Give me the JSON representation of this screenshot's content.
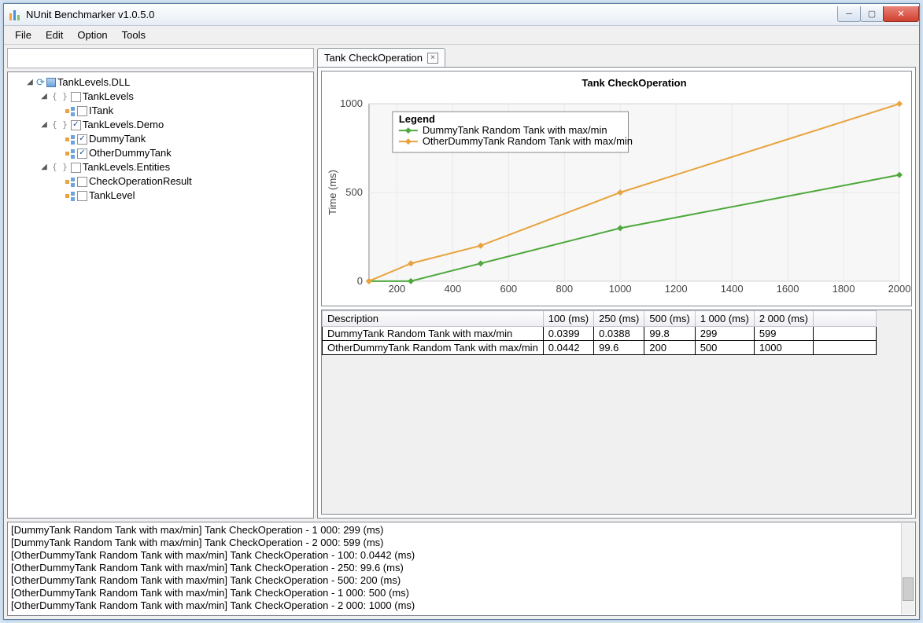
{
  "window": {
    "title": "NUnit Benchmarker v1.0.5.0"
  },
  "menu": {
    "file": "File",
    "edit": "Edit",
    "option": "Option",
    "tools": "Tools"
  },
  "tree": {
    "root": "TankLevels.DLL",
    "ns1": "TankLevels",
    "ns1_i1": "ITank",
    "ns2": "TankLevels.Demo",
    "ns2_i1": "DummyTank",
    "ns2_i2": "OtherDummyTank",
    "ns3": "TankLevels.Entities",
    "ns3_i1": "CheckOperationResult",
    "ns3_i2": "TankLevel"
  },
  "tab": {
    "label": "Tank CheckOperation"
  },
  "chart": {
    "type": "line",
    "title": "Tank CheckOperation",
    "title_fontsize": 16,
    "ylabel": "Time (ms)",
    "legend_title": "Legend",
    "xlim": [
      100,
      2000
    ],
    "ylim": [
      0,
      1000
    ],
    "xticks": [
      200,
      400,
      600,
      800,
      1000,
      1200,
      1400,
      1600,
      1800,
      2000
    ],
    "yticks": [
      0,
      500,
      1000
    ],
    "grid_color": "#e8e8e8",
    "background_color": "#ffffff",
    "plot_background": "#f7f7f7",
    "series": [
      {
        "name": "DummyTank Random Tank with max/min",
        "color": "#4fa83d",
        "marker": "diamond",
        "x": [
          100,
          250,
          500,
          1000,
          2000
        ],
        "y": [
          0.04,
          0.04,
          99.8,
          299,
          599
        ]
      },
      {
        "name": "OtherDummyTank Random Tank with max/min",
        "color": "#e8a33d",
        "marker": "diamond",
        "x": [
          100,
          250,
          500,
          1000,
          2000
        ],
        "y": [
          0.04,
          99.6,
          200,
          500,
          1000
        ]
      }
    ]
  },
  "table": {
    "columns": [
      "Description",
      "100 (ms)",
      "250 (ms)",
      "500 (ms)",
      "1 000 (ms)",
      "2 000 (ms)"
    ],
    "rows": [
      [
        "DummyTank Random Tank with max/min",
        "0.0399",
        "0.0388",
        "99.8",
        "299",
        "599"
      ],
      [
        "OtherDummyTank Random Tank with max/min",
        "0.0442",
        "99.6",
        "200",
        "500",
        "1000"
      ]
    ]
  },
  "log": [
    "[DummyTank Random Tank with max/min] Tank CheckOperation - 1 000: 299 (ms)",
    "[DummyTank Random Tank with max/min] Tank CheckOperation - 2 000: 599 (ms)",
    "[OtherDummyTank Random Tank with max/min] Tank CheckOperation - 100: 0.0442 (ms)",
    "[OtherDummyTank Random Tank with max/min] Tank CheckOperation - 250: 99.6 (ms)",
    "[OtherDummyTank Random Tank with max/min] Tank CheckOperation - 500: 200 (ms)",
    "[OtherDummyTank Random Tank with max/min] Tank CheckOperation - 1 000: 500 (ms)",
    "[OtherDummyTank Random Tank with max/min] Tank CheckOperation - 2 000: 1000 (ms)"
  ]
}
